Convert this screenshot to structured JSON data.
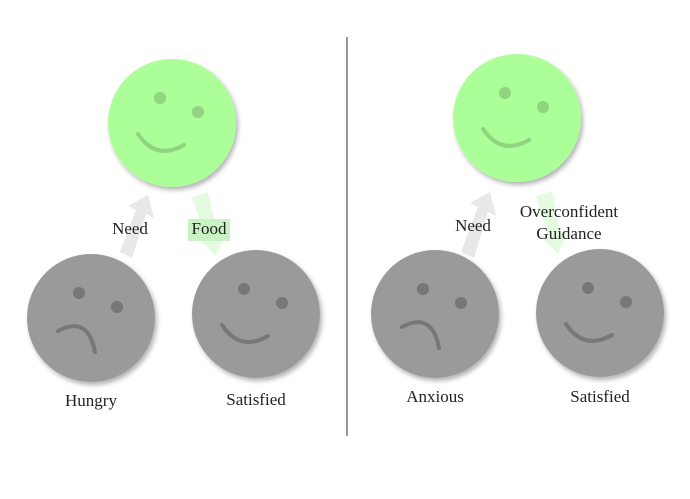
{
  "left": {
    "need": "Need",
    "food": "Food",
    "before": "Hungry",
    "after": "Satisfied"
  },
  "right": {
    "need": "Need",
    "guidance": [
      "Overconfident",
      "Guidance"
    ],
    "before": "Anxious",
    "after": "Satisfied"
  }
}
